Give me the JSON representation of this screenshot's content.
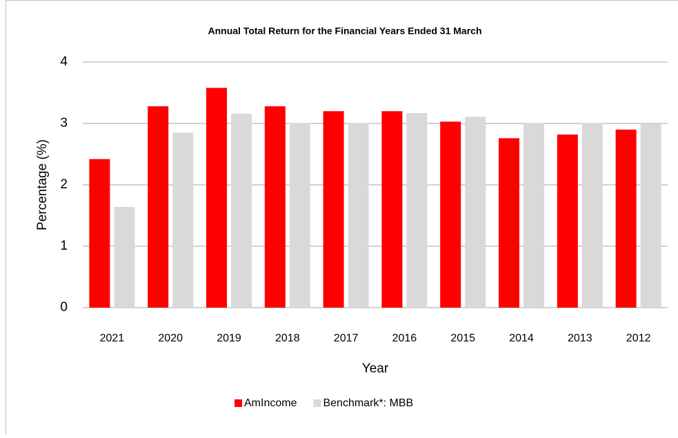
{
  "chart_data": {
    "type": "bar",
    "title": "Annual  Total  Return for the Financial  Years  Ended  31 March",
    "x_label": "Year",
    "y_label": "Percentage (%)",
    "categories": [
      "2021",
      "2020",
      "2019",
      "2018",
      "2017",
      "2016",
      "2015",
      "2014",
      "2013",
      "2012"
    ],
    "series": [
      {
        "name": "AmIncome",
        "color": "#ff0000",
        "values": [
          2.42,
          3.28,
          3.58,
          3.28,
          3.2,
          3.2,
          3.03,
          2.76,
          2.82,
          2.9
        ]
      },
      {
        "name": "Benchmark*: MBB",
        "color": "#d9d9d9",
        "values": [
          1.64,
          2.85,
          3.16,
          3.01,
          3.01,
          3.17,
          3.11,
          3.01,
          3.01,
          2.99
        ]
      }
    ],
    "ylim": [
      0,
      4
    ],
    "yticks": [
      0,
      1,
      2,
      3,
      4
    ],
    "grid": true,
    "legend": "bottom"
  }
}
